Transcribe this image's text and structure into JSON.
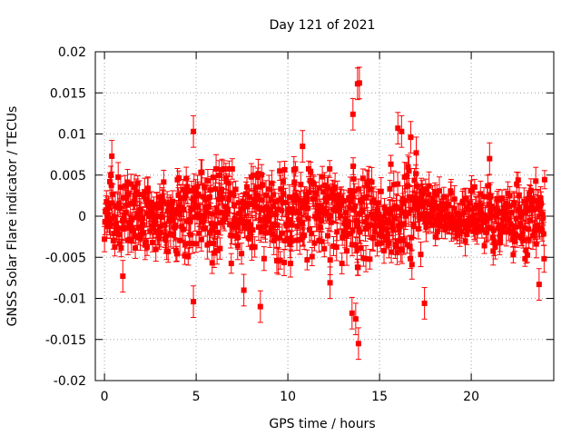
{
  "chart_data": {
    "type": "scatter",
    "title": "Day 121 of 2021",
    "xlabel": "GPS time / hours",
    "ylabel": "GNSS Solar Flare indicator / TECUs",
    "xlim": [
      -0.5,
      24.5
    ],
    "ylim": [
      -0.02,
      0.02
    ],
    "x_ticks": [
      0,
      5,
      10,
      15,
      20
    ],
    "x_tick_labels": [
      "0",
      "5",
      "10",
      "15",
      "20"
    ],
    "y_ticks": [
      -0.02,
      -0.015,
      -0.01,
      -0.005,
      0,
      0.005,
      0.01,
      0.015,
      0.02
    ],
    "y_tick_labels": [
      "-0.02",
      "-0.015",
      "-0.01",
      "-0.005",
      "0",
      "0.005",
      "0.01",
      "0.015",
      "0.02"
    ],
    "grid": true,
    "series_color": "#ff0000",
    "marker": "square",
    "error_bars": true,
    "typical_error": 0.0012,
    "band_envelope": {
      "x": [
        0,
        1,
        2,
        3,
        4,
        5,
        6,
        7,
        8,
        9,
        10,
        11,
        12,
        13,
        14,
        15,
        16,
        17,
        18,
        19,
        20,
        21,
        22,
        23,
        24
      ],
      "half_width": [
        0.0045,
        0.004,
        0.0035,
        0.0035,
        0.004,
        0.0045,
        0.005,
        0.005,
        0.0045,
        0.0045,
        0.005,
        0.005,
        0.005,
        0.005,
        0.0055,
        0.0055,
        0.0055,
        0.005,
        0.004,
        0.003,
        0.003,
        0.0035,
        0.0045,
        0.0045,
        0.0045
      ]
    },
    "notable_points": [
      {
        "x": 4.85,
        "y": 0.0103
      },
      {
        "x": 4.85,
        "y": -0.0104
      },
      {
        "x": 8.5,
        "y": -0.011
      },
      {
        "x": 13.55,
        "y": 0.0124
      },
      {
        "x": 13.5,
        "y": -0.0118
      },
      {
        "x": 13.8,
        "y": 0.0161
      },
      {
        "x": 13.9,
        "y": 0.0162
      },
      {
        "x": 13.85,
        "y": -0.0155
      },
      {
        "x": 13.7,
        "y": -0.0125
      },
      {
        "x": 16.0,
        "y": 0.0107
      },
      {
        "x": 16.2,
        "y": 0.0103
      },
      {
        "x": 17.45,
        "y": -0.0106
      },
      {
        "x": 1.0,
        "y": -0.0073
      },
      {
        "x": 0.4,
        "y": 0.0073
      },
      {
        "x": 7.6,
        "y": -0.009
      },
      {
        "x": 10.8,
        "y": 0.0085
      },
      {
        "x": 12.3,
        "y": -0.0081
      },
      {
        "x": 16.7,
        "y": 0.0096
      },
      {
        "x": 17.0,
        "y": 0.0077
      },
      {
        "x": 21.0,
        "y": 0.007
      },
      {
        "x": 23.7,
        "y": -0.0083
      }
    ]
  }
}
